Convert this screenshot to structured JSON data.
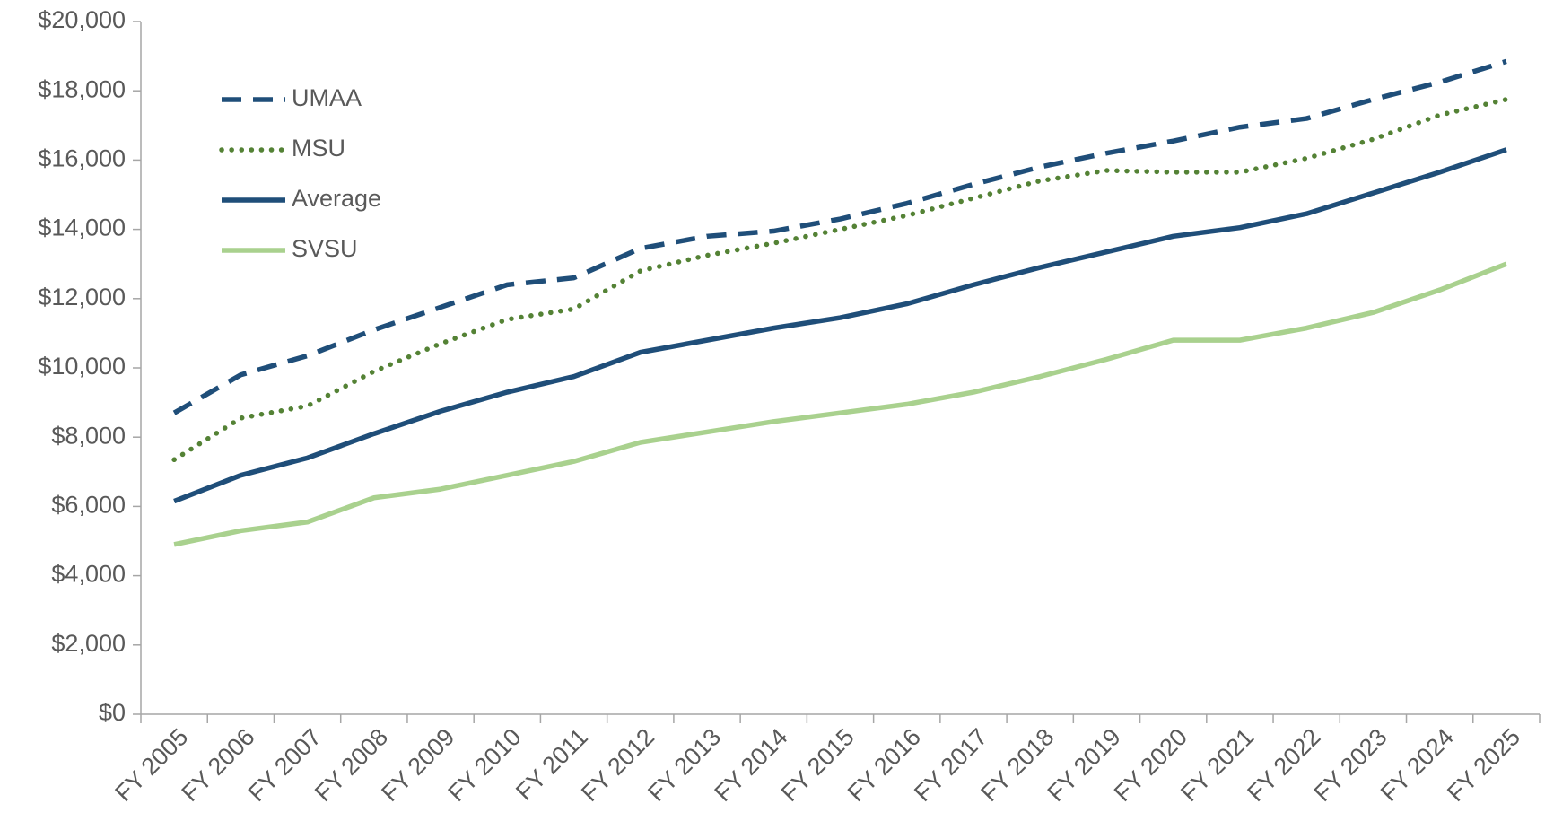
{
  "chart_data": {
    "type": "line",
    "categories": [
      "FY 2005",
      "FY 2006",
      "FY 2007",
      "FY 2008",
      "FY 2009",
      "FY 2010",
      "FY 2011",
      "FY 2012",
      "FY 2013",
      "FY 2014",
      "FY 2015",
      "FY 2016",
      "FY 2017",
      "FY 2018",
      "FY 2019",
      "FY 2020",
      "FY 2021",
      "FY 2022",
      "FY 2023",
      "FY 2024",
      "FY 2025"
    ],
    "series": [
      {
        "name": "UMAA",
        "color": "#1f4e79",
        "line_style": "dashed",
        "values": [
          8700,
          9800,
          10350,
          11100,
          11750,
          12400,
          12600,
          13450,
          13800,
          13950,
          14300,
          14750,
          15300,
          15800,
          16200,
          16550,
          16950,
          17200,
          17750,
          18250,
          18850
        ]
      },
      {
        "name": "MSU",
        "color": "#548235",
        "line_style": "dotted",
        "values": [
          7350,
          8550,
          8900,
          9900,
          10700,
          11400,
          11700,
          12800,
          13250,
          13600,
          14000,
          14400,
          14900,
          15400,
          15700,
          15650,
          15650,
          16050,
          16600,
          17300,
          17750
        ]
      },
      {
        "name": "Average",
        "color": "#1f4e79",
        "line_style": "solid",
        "values": [
          6150,
          6900,
          7400,
          8100,
          8750,
          9300,
          9750,
          10450,
          10800,
          11150,
          11450,
          11850,
          12400,
          12900,
          13350,
          13800,
          14050,
          14450,
          15050,
          15650,
          16300
        ]
      },
      {
        "name": "SVSU",
        "color": "#a9d18e",
        "line_style": "solid",
        "values": [
          4900,
          5300,
          5550,
          6250,
          6500,
          6900,
          7300,
          7850,
          8150,
          8450,
          8700,
          8950,
          9300,
          9750,
          10250,
          10800,
          10800,
          11150,
          11600,
          12250,
          13000
        ]
      }
    ],
    "ylim": [
      0,
      20000
    ],
    "yticks": [
      {
        "value": 0,
        "label": "$0"
      },
      {
        "value": 2000,
        "label": "$2,000"
      },
      {
        "value": 4000,
        "label": "$4,000"
      },
      {
        "value": 6000,
        "label": "$6,000"
      },
      {
        "value": 8000,
        "label": "$8,000"
      },
      {
        "value": 10000,
        "label": "$10,000"
      },
      {
        "value": 12000,
        "label": "$12,000"
      },
      {
        "value": 14000,
        "label": "$14,000"
      },
      {
        "value": 16000,
        "label": "$16,000"
      },
      {
        "value": 18000,
        "label": "$18,000"
      },
      {
        "value": 20000,
        "label": "$20,000"
      }
    ],
    "grid": false,
    "legend": "top-left"
  }
}
